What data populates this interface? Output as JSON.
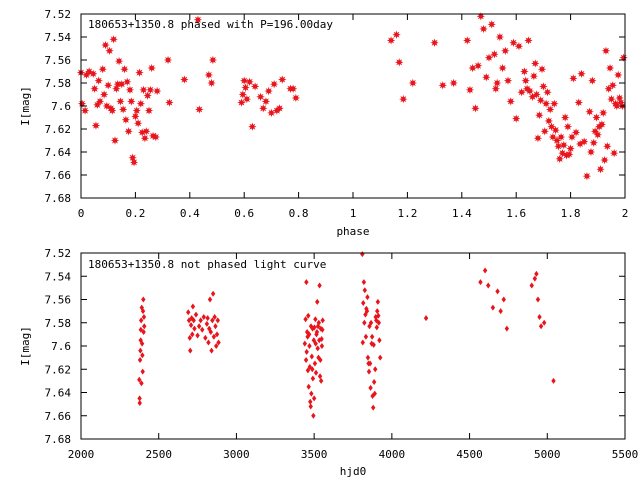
{
  "chart_data": [
    {
      "type": "scatter",
      "title": "180653+1350.8 phased with P=196.00day",
      "xlabel": "phase",
      "ylabel": "I[mag]",
      "xlim": [
        0,
        2
      ],
      "ylim": [
        7.52,
        7.68
      ],
      "y_inverted": true,
      "grid": false,
      "marker": "star",
      "color": "#e8151c",
      "x_ticks": [
        "0",
        "0.2",
        "0.4",
        "0.6",
        "0.8",
        "1",
        "1.2",
        "1.4",
        "1.6",
        "1.8",
        "2"
      ],
      "x_tick_values": [
        0,
        0.2,
        0.4,
        0.6,
        0.8,
        1,
        1.2,
        1.4,
        1.6,
        1.8,
        2
      ],
      "y_ticks": [
        "7.52",
        "7.54",
        "7.56",
        "7.58",
        "7.6",
        "7.62",
        "7.64",
        "7.66",
        "7.68"
      ],
      "y_tick_values": [
        7.52,
        7.54,
        7.56,
        7.58,
        7.6,
        7.62,
        7.64,
        7.66,
        7.68
      ],
      "points": [
        [
          0.0,
          7.571
        ],
        [
          0.004,
          7.598
        ],
        [
          0.015,
          7.604
        ],
        [
          0.02,
          7.573
        ],
        [
          0.03,
          7.57
        ],
        [
          0.045,
          7.572
        ],
        [
          0.05,
          7.585
        ],
        [
          0.055,
          7.617
        ],
        [
          0.06,
          7.599
        ],
        [
          0.065,
          7.578
        ],
        [
          0.07,
          7.596
        ],
        [
          0.08,
          7.568
        ],
        [
          0.085,
          7.59
        ],
        [
          0.09,
          7.547
        ],
        [
          0.095,
          7.6
        ],
        [
          0.1,
          7.582
        ],
        [
          0.105,
          7.552
        ],
        [
          0.11,
          7.602
        ],
        [
          0.115,
          7.604
        ],
        [
          0.12,
          7.542
        ],
        [
          0.125,
          7.63
        ],
        [
          0.13,
          7.585
        ],
        [
          0.135,
          7.581
        ],
        [
          0.14,
          7.561
        ],
        [
          0.145,
          7.596
        ],
        [
          0.15,
          7.581
        ],
        [
          0.155,
          7.603
        ],
        [
          0.16,
          7.568
        ],
        [
          0.165,
          7.612
        ],
        [
          0.17,
          7.579
        ],
        [
          0.175,
          7.622
        ],
        [
          0.18,
          7.586
        ],
        [
          0.185,
          7.596
        ],
        [
          0.19,
          7.645
        ],
        [
          0.195,
          7.649
        ],
        [
          0.2,
          7.609
        ],
        [
          0.205,
          7.604
        ],
        [
          0.21,
          7.615
        ],
        [
          0.215,
          7.571
        ],
        [
          0.22,
          7.598
        ],
        [
          0.225,
          7.623
        ],
        [
          0.23,
          7.586
        ],
        [
          0.235,
          7.628
        ],
        [
          0.24,
          7.622
        ],
        [
          0.245,
          7.591
        ],
        [
          0.25,
          7.604
        ],
        [
          0.255,
          7.586
        ],
        [
          0.26,
          7.567
        ],
        [
          0.265,
          7.626
        ],
        [
          0.275,
          7.627
        ],
        [
          0.28,
          7.587
        ],
        [
          0.32,
          7.56
        ],
        [
          0.325,
          7.597
        ],
        [
          0.38,
          7.577
        ],
        [
          0.43,
          7.525
        ],
        [
          0.435,
          7.603
        ],
        [
          0.47,
          7.573
        ],
        [
          0.48,
          7.58
        ],
        [
          0.485,
          7.56
        ],
        [
          0.59,
          7.597
        ],
        [
          0.595,
          7.59
        ],
        [
          0.6,
          7.578
        ],
        [
          0.605,
          7.584
        ],
        [
          0.61,
          7.594
        ],
        [
          0.62,
          7.579
        ],
        [
          0.63,
          7.618
        ],
        [
          0.64,
          7.583
        ],
        [
          0.66,
          7.592
        ],
        [
          0.67,
          7.602
        ],
        [
          0.68,
          7.596
        ],
        [
          0.69,
          7.587
        ],
        [
          0.7,
          7.606
        ],
        [
          0.71,
          7.581
        ],
        [
          0.72,
          7.604
        ],
        [
          0.73,
          7.602
        ],
        [
          0.74,
          7.577
        ],
        [
          0.77,
          7.585
        ],
        [
          0.78,
          7.585
        ],
        [
          0.79,
          7.593
        ],
        [
          1.14,
          7.543
        ],
        [
          1.16,
          7.538
        ],
        [
          1.17,
          7.562
        ],
        [
          1.185,
          7.594
        ],
        [
          1.22,
          7.58
        ],
        [
          1.3,
          7.545
        ],
        [
          1.33,
          7.582
        ],
        [
          1.37,
          7.58
        ],
        [
          1.42,
          7.543
        ],
        [
          1.43,
          7.586
        ],
        [
          1.44,
          7.567
        ],
        [
          1.45,
          7.602
        ],
        [
          1.46,
          7.565
        ],
        [
          1.47,
          7.522
        ],
        [
          1.48,
          7.533
        ],
        [
          1.49,
          7.575
        ],
        [
          1.5,
          7.558
        ],
        [
          1.51,
          7.529
        ],
        [
          1.52,
          7.555
        ],
        [
          1.525,
          7.585
        ],
        [
          1.53,
          7.58
        ],
        [
          1.54,
          7.54
        ],
        [
          1.55,
          7.567
        ],
        [
          1.56,
          7.552
        ],
        [
          1.57,
          7.578
        ],
        [
          1.58,
          7.596
        ],
        [
          1.59,
          7.545
        ],
        [
          1.6,
          7.611
        ],
        [
          1.61,
          7.548
        ],
        [
          1.62,
          7.588
        ],
        [
          1.63,
          7.57
        ],
        [
          1.635,
          7.578
        ],
        [
          1.64,
          7.585
        ],
        [
          1.645,
          7.543
        ],
        [
          1.65,
          7.587
        ],
        [
          1.66,
          7.592
        ],
        [
          1.665,
          7.574
        ],
        [
          1.67,
          7.563
        ],
        [
          1.675,
          7.59
        ],
        [
          1.68,
          7.628
        ],
        [
          1.685,
          7.608
        ],
        [
          1.69,
          7.595
        ],
        [
          1.695,
          7.568
        ],
        [
          1.7,
          7.583
        ],
        [
          1.705,
          7.622
        ],
        [
          1.71,
          7.598
        ],
        [
          1.715,
          7.588
        ],
        [
          1.72,
          7.613
        ],
        [
          1.725,
          7.603
        ],
        [
          1.73,
          7.618
        ],
        [
          1.735,
          7.627
        ],
        [
          1.74,
          7.598
        ],
        [
          1.745,
          7.621
        ],
        [
          1.75,
          7.63
        ],
        [
          1.755,
          7.635
        ],
        [
          1.76,
          7.646
        ],
        [
          1.765,
          7.627
        ],
        [
          1.77,
          7.641
        ],
        [
          1.775,
          7.634
        ],
        [
          1.78,
          7.61
        ],
        [
          1.785,
          7.643
        ],
        [
          1.79,
          7.618
        ],
        [
          1.795,
          7.642
        ],
        [
          1.8,
          7.637
        ],
        [
          1.805,
          7.627
        ],
        [
          1.81,
          7.576
        ],
        [
          1.82,
          7.623
        ],
        [
          1.83,
          7.597
        ],
        [
          1.835,
          7.633
        ],
        [
          1.84,
          7.572
        ],
        [
          1.85,
          7.631
        ],
        [
          1.86,
          7.661
        ],
        [
          1.87,
          7.605
        ],
        [
          1.875,
          7.64
        ],
        [
          1.88,
          7.578
        ],
        [
          1.885,
          7.632
        ],
        [
          1.89,
          7.622
        ],
        [
          1.895,
          7.61
        ],
        [
          1.9,
          7.625
        ],
        [
          1.905,
          7.618
        ],
        [
          1.91,
          7.655
        ],
        [
          1.915,
          7.616
        ],
        [
          1.92,
          7.606
        ],
        [
          1.925,
          7.647
        ],
        [
          1.93,
          7.552
        ],
        [
          1.935,
          7.635
        ],
        [
          1.94,
          7.585
        ],
        [
          1.945,
          7.567
        ],
        [
          1.95,
          7.594
        ],
        [
          1.955,
          7.582
        ],
        [
          1.96,
          7.641
        ],
        [
          1.965,
          7.598
        ],
        [
          1.97,
          7.6
        ],
        [
          1.975,
          7.573
        ],
        [
          1.98,
          7.593
        ],
        [
          1.985,
          7.597
        ],
        [
          1.99,
          7.6
        ],
        [
          1.995,
          7.558
        ]
      ]
    },
    {
      "type": "scatter",
      "title": "180653+1350.8 not phased light curve",
      "xlabel": "hjd0",
      "ylabel": "I[mag]",
      "xlim": [
        2000,
        5500
      ],
      "ylim": [
        7.52,
        7.68
      ],
      "y_inverted": true,
      "grid": false,
      "marker": "diamond",
      "color": "#e8151c",
      "x_ticks": [
        "2000",
        "2500",
        "3000",
        "3500",
        "4000",
        "4500",
        "5000",
        "5500"
      ],
      "x_tick_values": [
        2000,
        2500,
        3000,
        3500,
        4000,
        4500,
        5000,
        5500
      ],
      "y_ticks": [
        "7.52",
        "7.54",
        "7.56",
        "7.58",
        "7.6",
        "7.62",
        "7.64",
        "7.66",
        "7.68"
      ],
      "y_tick_values": [
        7.52,
        7.54,
        7.56,
        7.58,
        7.6,
        7.62,
        7.64,
        7.66,
        7.68
      ],
      "points": [
        [
          2375,
          7.629
        ],
        [
          2377,
          7.645
        ],
        [
          2378,
          7.649
        ],
        [
          2380,
          7.612
        ],
        [
          2382,
          7.604
        ],
        [
          2384,
          7.595
        ],
        [
          2385,
          7.586
        ],
        [
          2387,
          7.578
        ],
        [
          2389,
          7.632
        ],
        [
          2391,
          7.567
        ],
        [
          2393,
          7.598
        ],
        [
          2395,
          7.608
        ],
        [
          2397,
          7.622
        ],
        [
          2399,
          7.57
        ],
        [
          2401,
          7.56
        ],
        [
          2403,
          7.588
        ],
        [
          2405,
          7.575
        ],
        [
          2407,
          7.583
        ],
        [
          2690,
          7.571
        ],
        [
          2695,
          7.578
        ],
        [
          2700,
          7.593
        ],
        [
          2703,
          7.604
        ],
        [
          2708,
          7.582
        ],
        [
          2712,
          7.576
        ],
        [
          2716,
          7.59
        ],
        [
          2720,
          7.566
        ],
        [
          2725,
          7.578
        ],
        [
          2730,
          7.585
        ],
        [
          2740,
          7.573
        ],
        [
          2750,
          7.591
        ],
        [
          2760,
          7.583
        ],
        [
          2770,
          7.578
        ],
        [
          2780,
          7.586
        ],
        [
          2790,
          7.575
        ],
        [
          2800,
          7.593
        ],
        [
          2810,
          7.581
        ],
        [
          2815,
          7.576
        ],
        [
          2820,
          7.597
        ],
        [
          2825,
          7.585
        ],
        [
          2830,
          7.56
        ],
        [
          2835,
          7.588
        ],
        [
          2840,
          7.604
        ],
        [
          2845,
          7.578
        ],
        [
          2850,
          7.555
        ],
        [
          2855,
          7.592
        ],
        [
          2860,
          7.575
        ],
        [
          2865,
          7.583
        ],
        [
          2870,
          7.6
        ],
        [
          2875,
          7.59
        ],
        [
          2880,
          7.578
        ],
        [
          2885,
          7.597
        ],
        [
          3440,
          7.598
        ],
        [
          3445,
          7.577
        ],
        [
          3448,
          7.612
        ],
        [
          3450,
          7.545
        ],
        [
          3452,
          7.605
        ],
        [
          3455,
          7.588
        ],
        [
          3458,
          7.592
        ],
        [
          3460,
          7.621
        ],
        [
          3462,
          7.574
        ],
        [
          3465,
          7.635
        ],
        [
          3468,
          7.59
        ],
        [
          3470,
          7.6
        ],
        [
          3472,
          7.618
        ],
        [
          3475,
          7.648
        ],
        [
          3478,
          7.652
        ],
        [
          3480,
          7.583
        ],
        [
          3482,
          7.641
        ],
        [
          3485,
          7.609
        ],
        [
          3488,
          7.62
        ],
        [
          3490,
          7.585
        ],
        [
          3492,
          7.628
        ],
        [
          3495,
          7.66
        ],
        [
          3498,
          7.595
        ],
        [
          3500,
          7.645
        ],
        [
          3502,
          7.584
        ],
        [
          3505,
          7.615
        ],
        [
          3508,
          7.577
        ],
        [
          3510,
          7.598
        ],
        [
          3512,
          7.623
        ],
        [
          3515,
          7.59
        ],
        [
          3518,
          7.588
        ],
        [
          3520,
          7.562
        ],
        [
          3523,
          7.602
        ],
        [
          3525,
          7.583
        ],
        [
          3528,
          7.61
        ],
        [
          3530,
          7.58
        ],
        [
          3533,
          7.595
        ],
        [
          3535,
          7.548
        ],
        [
          3538,
          7.626
        ],
        [
          3540,
          7.612
        ],
        [
          3543,
          7.585
        ],
        [
          3545,
          7.63
        ],
        [
          3548,
          7.594
        ],
        [
          3550,
          7.6
        ],
        [
          3553,
          7.586
        ],
        [
          3555,
          7.578
        ],
        [
          3810,
          7.521
        ],
        [
          3813,
          7.597
        ],
        [
          3816,
          7.563
        ],
        [
          3820,
          7.545
        ],
        [
          3823,
          7.58
        ],
        [
          3826,
          7.552
        ],
        [
          3830,
          7.573
        ],
        [
          3833,
          7.592
        ],
        [
          3836,
          7.568
        ],
        [
          3840,
          7.57
        ],
        [
          3843,
          7.558
        ],
        [
          3846,
          7.61
        ],
        [
          3850,
          7.615
        ],
        [
          3853,
          7.622
        ],
        [
          3856,
          7.583
        ],
        [
          3860,
          7.615
        ],
        [
          3863,
          7.636
        ],
        [
          3866,
          7.58
        ],
        [
          3870,
          7.598
        ],
        [
          3873,
          7.592
        ],
        [
          3876,
          7.643
        ],
        [
          3880,
          7.653
        ],
        [
          3883,
          7.599
        ],
        [
          3886,
          7.631
        ],
        [
          3890,
          7.641
        ],
        [
          3893,
          7.62
        ],
        [
          3896,
          7.575
        ],
        [
          3900,
          7.578
        ],
        [
          3903,
          7.584
        ],
        [
          3906,
          7.57
        ],
        [
          3910,
          7.562
        ],
        [
          3913,
          7.574
        ],
        [
          3916,
          7.58
        ],
        [
          3920,
          7.595
        ],
        [
          3925,
          7.61
        ],
        [
          4220,
          7.576
        ],
        [
          4570,
          7.545
        ],
        [
          4600,
          7.535
        ],
        [
          4620,
          7.548
        ],
        [
          4650,
          7.567
        ],
        [
          4680,
          7.553
        ],
        [
          4700,
          7.57
        ],
        [
          4720,
          7.56
        ],
        [
          4740,
          7.585
        ],
        [
          4900,
          7.548
        ],
        [
          4920,
          7.542
        ],
        [
          4930,
          7.538
        ],
        [
          4940,
          7.56
        ],
        [
          4950,
          7.575
        ],
        [
          4960,
          7.583
        ],
        [
          4980,
          7.58
        ],
        [
          5040,
          7.63
        ]
      ]
    }
  ]
}
